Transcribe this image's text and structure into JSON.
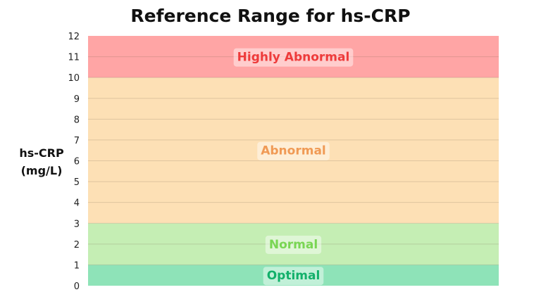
{
  "chart_data": {
    "type": "bar",
    "title": "Reference Range for hs-CRP",
    "ylabel_lines": [
      "hs-CRP",
      "(mg/L)"
    ],
    "ylim": [
      0,
      12
    ],
    "yticks": [
      0,
      1,
      2,
      3,
      4,
      5,
      6,
      7,
      8,
      9,
      10,
      11,
      12
    ],
    "grid": true,
    "ranges": [
      {
        "label": "Optimal",
        "from": 0,
        "to": 1,
        "fill": "#8ee3b8",
        "text_color": "#12b06a"
      },
      {
        "label": "Normal",
        "from": 1,
        "to": 3,
        "fill": "#c5eeb4",
        "text_color": "#79d653"
      },
      {
        "label": "Abnormal",
        "from": 3,
        "to": 10,
        "fill": "#fde0b5",
        "text_color": "#f09a55"
      },
      {
        "label": "Highly Abnormal",
        "from": 10,
        "to": 12,
        "fill": "#ffa5a5",
        "text_color": "#ee3b3b"
      }
    ]
  }
}
